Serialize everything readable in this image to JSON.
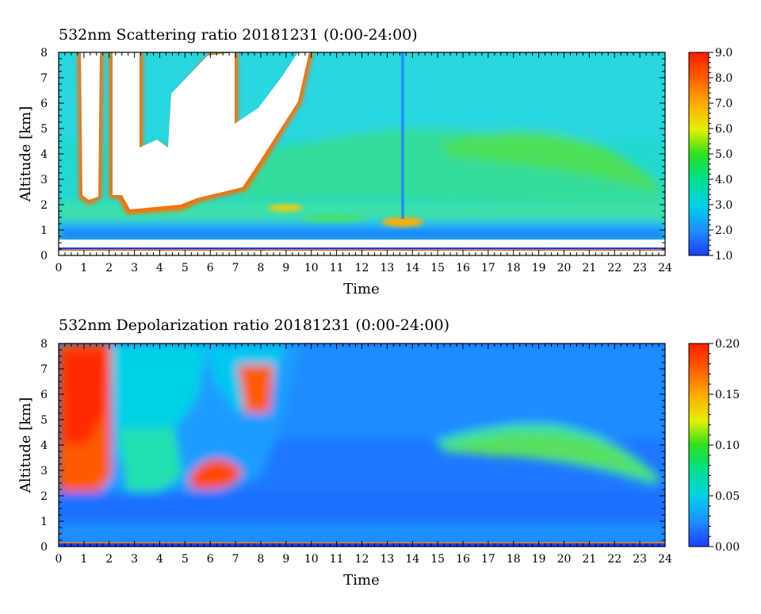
{
  "chart_data": [
    {
      "type": "heatmap",
      "title": "532nm Scattering ratio  20181231 (0:00-24:00)",
      "xlabel": "Time",
      "ylabel": "Altitude [km]",
      "xlim": [
        0,
        24
      ],
      "ylim": [
        0,
        8
      ],
      "x_ticks": [
        "0",
        "1",
        "2",
        "3",
        "4",
        "5",
        "6",
        "7",
        "8",
        "9",
        "10",
        "11",
        "12",
        "13",
        "14",
        "15",
        "16",
        "17",
        "18",
        "19",
        "20",
        "21",
        "22",
        "23",
        "24"
      ],
      "y_ticks": [
        "0",
        "1",
        "2",
        "3",
        "4",
        "5",
        "6",
        "7",
        "8"
      ],
      "colorbar": {
        "min": 1.0,
        "max": 9.0,
        "ticks": [
          "1.0",
          "2.0",
          "3.0",
          "4.0",
          "5.0",
          "6.0",
          "7.0",
          "8.0",
          "9.0"
        ]
      },
      "features": {
        "background_level": 3.0,
        "cloud_saturated_regions_time_h": [
          [
            0.8,
            1.2
          ],
          [
            2.0,
            2.4
          ],
          [
            3.0,
            7.2
          ],
          [
            7.2,
            8.5
          ]
        ],
        "low_aerosol_layer_km": [
          0.9,
          1.5
        ],
        "elevated_layer_time_h": [
          15,
          23.5
        ],
        "elevated_layer_top_km": [
          4.8,
          2.6
        ]
      },
      "colors": {
        "low": "#1e3cff",
        "mid": "#00e05a",
        "high": "#ff2200",
        "saturated": "#ffffff"
      }
    },
    {
      "type": "heatmap",
      "title": "532nm Depolarization ratio  20181231 (0:00-24:00)",
      "xlabel": "Time",
      "ylabel": "Altitude [km]",
      "xlim": [
        0,
        24
      ],
      "ylim": [
        0,
        8
      ],
      "x_ticks": [
        "0",
        "1",
        "2",
        "3",
        "4",
        "5",
        "6",
        "7",
        "8",
        "9",
        "10",
        "11",
        "12",
        "13",
        "14",
        "15",
        "16",
        "17",
        "18",
        "19",
        "20",
        "21",
        "22",
        "23",
        "24"
      ],
      "y_ticks": [
        "0",
        "1",
        "2",
        "3",
        "4",
        "5",
        "6",
        "7",
        "8"
      ],
      "colorbar": {
        "min": 0.0,
        "max": 0.2,
        "ticks": [
          "0.00",
          "0.05",
          "0.10",
          "0.15",
          "0.20"
        ]
      },
      "features": {
        "background_level": 0.02,
        "high_depol_region_time_h": [
          0,
          9
        ],
        "elevated_layer_time_h": [
          15,
          23.5
        ],
        "elevated_layer_level": 0.07
      },
      "colors": {
        "low": "#1e3cff",
        "mid": "#00e05a",
        "high": "#ff2200"
      }
    }
  ]
}
